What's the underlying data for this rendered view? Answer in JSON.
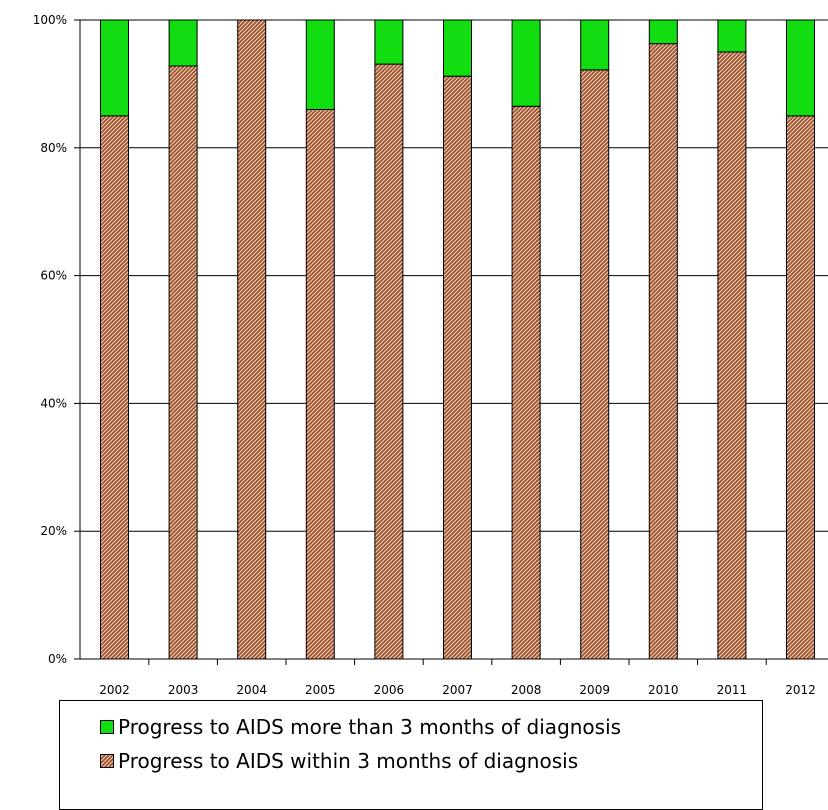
{
  "chart_data": {
    "type": "bar",
    "stacked": true,
    "categories": [
      "2002",
      "2003",
      "2004",
      "2005",
      "2006",
      "2007",
      "2008",
      "2009",
      "2010",
      "2011",
      "2012"
    ],
    "series": [
      {
        "name": "Progress to AIDS within 3 months of diagnosis",
        "color": "#a0522d",
        "pattern": "diagonal-hatch",
        "values": [
          85,
          92.8,
          100,
          86,
          93.1,
          91.2,
          86.5,
          92.2,
          96.3,
          95,
          85
        ]
      },
      {
        "name": "Progress to AIDS more than 3 months of diagnosis",
        "color": "#11dd11",
        "values": [
          15,
          7.2,
          0,
          14,
          6.9,
          8.8,
          13.5,
          7.8,
          3.7,
          5,
          15
        ]
      }
    ],
    "y_ticks": [
      "0%",
      "20%",
      "40%",
      "60%",
      "80%",
      "100%"
    ],
    "ylim": [
      0,
      100
    ],
    "grid": true,
    "legend_position": "bottom",
    "title": "",
    "xlabel": "",
    "ylabel": ""
  }
}
